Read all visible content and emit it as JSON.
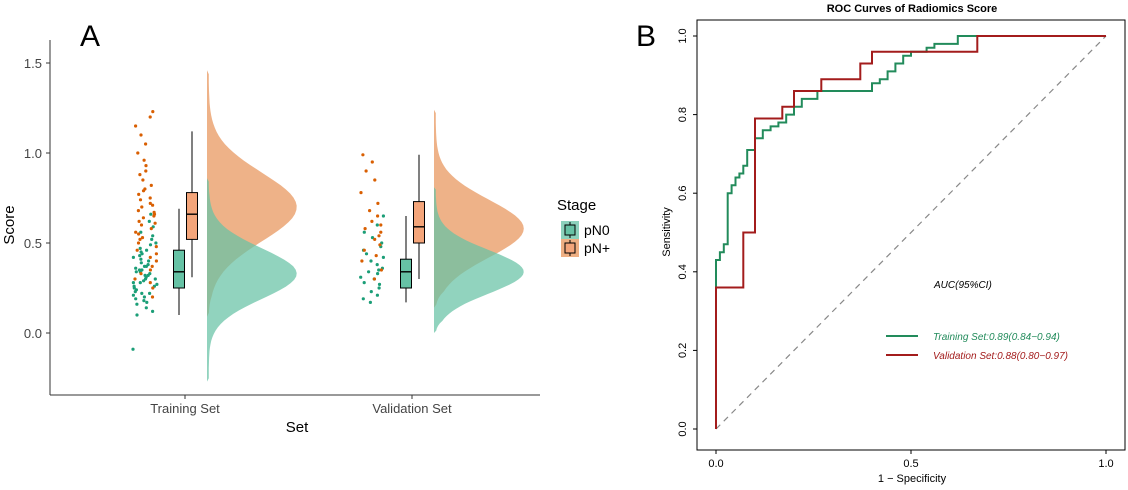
{
  "panel_a": {
    "label": "A",
    "legend_title": "Stage",
    "legend_items": [
      "pN0",
      "pN+"
    ]
  },
  "panel_b": {
    "label": "B",
    "auc_header": "AUC(95%CI)",
    "legend_items": [
      "Training Set:0.89(0.84−0.94)",
      "Validation Set:0.88(0.80−0.97)"
    ]
  },
  "colors": {
    "pN0": "#1b9e77",
    "pN0_fill": "#66c2a5",
    "pNplus": "#d95f02",
    "pNplus_fill": "#e8945a",
    "training_line": "#228b5b",
    "validation_line": "#a31c1c"
  },
  "chart_data": [
    {
      "type": "raincloud",
      "xlabel": "Set",
      "ylabel": "Score",
      "categories": [
        "Training Set",
        "Validation Set"
      ],
      "ylim": [
        -0.4,
        1.55
      ],
      "yticks": [
        "0.0",
        "0.5",
        "1.0",
        "1.5"
      ],
      "legend_position": "right",
      "series": [
        {
          "name": "pN0",
          "boxes": [
            {
              "min": 0.1,
              "q1": 0.25,
              "median": 0.34,
              "q3": 0.46,
              "max": 0.69
            },
            {
              "min": 0.17,
              "q1": 0.25,
              "median": 0.34,
              "q3": 0.41,
              "max": 0.65
            }
          ],
          "points": [
            [
              -0.09,
              0.1,
              0.12,
              0.14,
              0.16,
              0.17,
              0.18,
              0.19,
              0.2,
              0.21,
              0.22,
              0.22,
              0.23,
              0.24,
              0.25,
              0.26,
              0.26,
              0.27,
              0.28,
              0.28,
              0.29,
              0.3,
              0.3,
              0.31,
              0.32,
              0.32,
              0.33,
              0.34,
              0.34,
              0.35,
              0.35,
              0.36,
              0.37,
              0.37,
              0.38,
              0.39,
              0.4,
              0.41,
              0.42,
              0.43,
              0.44,
              0.45,
              0.46,
              0.47,
              0.49,
              0.5,
              0.52,
              0.54,
              0.56,
              0.59,
              0.62,
              0.66
            ],
            [
              0.17,
              0.19,
              0.21,
              0.23,
              0.25,
              0.27,
              0.28,
              0.3,
              0.31,
              0.33,
              0.34,
              0.35,
              0.36,
              0.38,
              0.4,
              0.42,
              0.44,
              0.46,
              0.48,
              0.5,
              0.53,
              0.56,
              0.6,
              0.65
            ]
          ],
          "density": [
            {
              "mode": 0.33,
              "sd": 0.14,
              "ymin": -0.27,
              "ymax": 0.86
            },
            {
              "mode": 0.34,
              "sd": 0.12,
              "ymin": 0.0,
              "ymax": 0.81
            }
          ]
        },
        {
          "name": "pN+",
          "boxes": [
            {
              "min": 0.31,
              "q1": 0.52,
              "median": 0.66,
              "q3": 0.78,
              "max": 1.12
            },
            {
              "min": 0.3,
              "q1": 0.5,
              "median": 0.59,
              "q3": 0.73,
              "max": 0.99
            }
          ],
          "points": [
            [
              0.2,
              0.25,
              0.28,
              0.3,
              0.33,
              0.35,
              0.37,
              0.4,
              0.42,
              0.44,
              0.46,
              0.48,
              0.5,
              0.52,
              0.53,
              0.55,
              0.56,
              0.58,
              0.6,
              0.61,
              0.62,
              0.64,
              0.65,
              0.66,
              0.67,
              0.68,
              0.7,
              0.71,
              0.72,
              0.74,
              0.75,
              0.77,
              0.79,
              0.8,
              0.82,
              0.85,
              0.88,
              0.9,
              0.93,
              0.96,
              1.0,
              1.05,
              1.1,
              1.15,
              1.2,
              1.23
            ],
            [
              0.3,
              0.35,
              0.4,
              0.43,
              0.46,
              0.49,
              0.52,
              0.54,
              0.56,
              0.58,
              0.6,
              0.62,
              0.65,
              0.68,
              0.72,
              0.78,
              0.85,
              0.9,
              0.95,
              0.99
            ]
          ],
          "density": [
            {
              "mode": 0.7,
              "sd": 0.19,
              "ymin": 0.09,
              "ymax": 1.46
            },
            {
              "mode": 0.58,
              "sd": 0.16,
              "ymin": 0.14,
              "ymax": 1.24
            }
          ]
        }
      ]
    },
    {
      "type": "line",
      "title": "ROC Curves of Radiomics Score",
      "xlabel": "1 − Specificity",
      "ylabel": "Sensitivity",
      "xlim": [
        0,
        1
      ],
      "ylim": [
        0,
        1
      ],
      "xticks": [
        "0.0",
        "0.5",
        "1.0"
      ],
      "yticks": [
        "0.0",
        "0.2",
        "0.4",
        "0.6",
        "0.8",
        "1.0"
      ],
      "reference_line": "diagonal dashed",
      "series": [
        {
          "name": "Training Set:0.89(0.84−0.94)",
          "x": [
            0,
            0,
            0.01,
            0.01,
            0.02,
            0.02,
            0.03,
            0.03,
            0.04,
            0.04,
            0.05,
            0.05,
            0.06,
            0.06,
            0.07,
            0.07,
            0.08,
            0.08,
            0.1,
            0.1,
            0.12,
            0.12,
            0.14,
            0.14,
            0.16,
            0.16,
            0.18,
            0.18,
            0.2,
            0.2,
            0.22,
            0.22,
            0.26,
            0.26,
            0.4,
            0.4,
            0.42,
            0.42,
            0.44,
            0.44,
            0.46,
            0.46,
            0.48,
            0.48,
            0.5,
            0.5,
            0.54,
            0.54,
            0.56,
            0.56,
            0.62,
            0.62,
            0.7,
            1.0
          ],
          "y": [
            0,
            0.43,
            0.43,
            0.45,
            0.45,
            0.47,
            0.47,
            0.6,
            0.6,
            0.62,
            0.62,
            0.64,
            0.64,
            0.65,
            0.65,
            0.67,
            0.67,
            0.71,
            0.71,
            0.74,
            0.74,
            0.76,
            0.76,
            0.77,
            0.77,
            0.78,
            0.78,
            0.8,
            0.8,
            0.82,
            0.82,
            0.84,
            0.84,
            0.86,
            0.86,
            0.88,
            0.88,
            0.89,
            0.89,
            0.91,
            0.91,
            0.93,
            0.93,
            0.95,
            0.95,
            0.96,
            0.96,
            0.97,
            0.97,
            0.98,
            0.98,
            1.0,
            1.0,
            1.0
          ]
        },
        {
          "name": "Validation Set:0.88(0.80−0.97)",
          "x": [
            0,
            0,
            0.07,
            0.07,
            0.1,
            0.1,
            0.17,
            0.17,
            0.2,
            0.2,
            0.27,
            0.27,
            0.3,
            0.3,
            0.37,
            0.37,
            0.4,
            0.4,
            0.5,
            0.5,
            0.67,
            0.67,
            1.0
          ],
          "y": [
            0,
            0.36,
            0.36,
            0.5,
            0.5,
            0.79,
            0.79,
            0.82,
            0.82,
            0.86,
            0.86,
            0.89,
            0.89,
            0.89,
            0.89,
            0.93,
            0.93,
            0.96,
            0.96,
            0.96,
            0.96,
            1.0,
            1.0
          ]
        }
      ]
    }
  ]
}
